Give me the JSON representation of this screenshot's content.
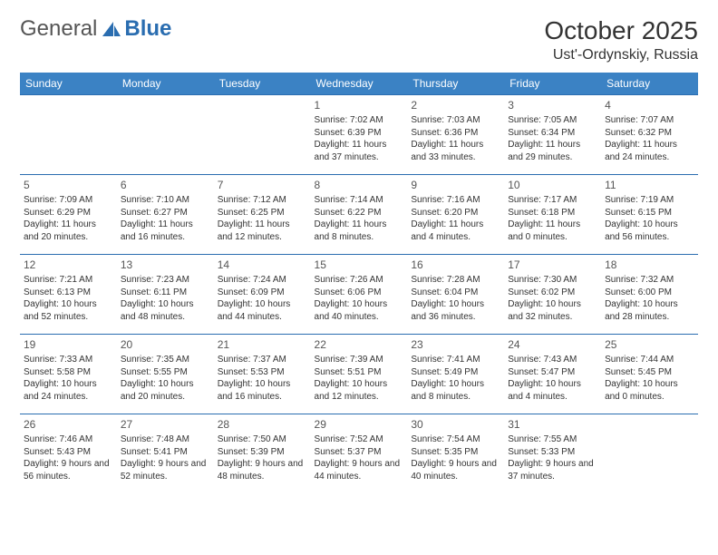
{
  "brand": {
    "part1": "General",
    "part2": "Blue"
  },
  "title": "October 2025",
  "location": "Ust'-Ordynskiy, Russia",
  "colors": {
    "header_bg": "#3b82c4",
    "header_text": "#ffffff",
    "border": "#2a6db0",
    "text": "#333333",
    "brand_blue": "#2a6db0"
  },
  "weekdays": [
    "Sunday",
    "Monday",
    "Tuesday",
    "Wednesday",
    "Thursday",
    "Friday",
    "Saturday"
  ],
  "weeks": [
    [
      null,
      null,
      null,
      {
        "n": "1",
        "sr": "Sunrise: 7:02 AM",
        "ss": "Sunset: 6:39 PM",
        "dl": "Daylight: 11 hours and 37 minutes."
      },
      {
        "n": "2",
        "sr": "Sunrise: 7:03 AM",
        "ss": "Sunset: 6:36 PM",
        "dl": "Daylight: 11 hours and 33 minutes."
      },
      {
        "n": "3",
        "sr": "Sunrise: 7:05 AM",
        "ss": "Sunset: 6:34 PM",
        "dl": "Daylight: 11 hours and 29 minutes."
      },
      {
        "n": "4",
        "sr": "Sunrise: 7:07 AM",
        "ss": "Sunset: 6:32 PM",
        "dl": "Daylight: 11 hours and 24 minutes."
      }
    ],
    [
      {
        "n": "5",
        "sr": "Sunrise: 7:09 AM",
        "ss": "Sunset: 6:29 PM",
        "dl": "Daylight: 11 hours and 20 minutes."
      },
      {
        "n": "6",
        "sr": "Sunrise: 7:10 AM",
        "ss": "Sunset: 6:27 PM",
        "dl": "Daylight: 11 hours and 16 minutes."
      },
      {
        "n": "7",
        "sr": "Sunrise: 7:12 AM",
        "ss": "Sunset: 6:25 PM",
        "dl": "Daylight: 11 hours and 12 minutes."
      },
      {
        "n": "8",
        "sr": "Sunrise: 7:14 AM",
        "ss": "Sunset: 6:22 PM",
        "dl": "Daylight: 11 hours and 8 minutes."
      },
      {
        "n": "9",
        "sr": "Sunrise: 7:16 AM",
        "ss": "Sunset: 6:20 PM",
        "dl": "Daylight: 11 hours and 4 minutes."
      },
      {
        "n": "10",
        "sr": "Sunrise: 7:17 AM",
        "ss": "Sunset: 6:18 PM",
        "dl": "Daylight: 11 hours and 0 minutes."
      },
      {
        "n": "11",
        "sr": "Sunrise: 7:19 AM",
        "ss": "Sunset: 6:15 PM",
        "dl": "Daylight: 10 hours and 56 minutes."
      }
    ],
    [
      {
        "n": "12",
        "sr": "Sunrise: 7:21 AM",
        "ss": "Sunset: 6:13 PM",
        "dl": "Daylight: 10 hours and 52 minutes."
      },
      {
        "n": "13",
        "sr": "Sunrise: 7:23 AM",
        "ss": "Sunset: 6:11 PM",
        "dl": "Daylight: 10 hours and 48 minutes."
      },
      {
        "n": "14",
        "sr": "Sunrise: 7:24 AM",
        "ss": "Sunset: 6:09 PM",
        "dl": "Daylight: 10 hours and 44 minutes."
      },
      {
        "n": "15",
        "sr": "Sunrise: 7:26 AM",
        "ss": "Sunset: 6:06 PM",
        "dl": "Daylight: 10 hours and 40 minutes."
      },
      {
        "n": "16",
        "sr": "Sunrise: 7:28 AM",
        "ss": "Sunset: 6:04 PM",
        "dl": "Daylight: 10 hours and 36 minutes."
      },
      {
        "n": "17",
        "sr": "Sunrise: 7:30 AM",
        "ss": "Sunset: 6:02 PM",
        "dl": "Daylight: 10 hours and 32 minutes."
      },
      {
        "n": "18",
        "sr": "Sunrise: 7:32 AM",
        "ss": "Sunset: 6:00 PM",
        "dl": "Daylight: 10 hours and 28 minutes."
      }
    ],
    [
      {
        "n": "19",
        "sr": "Sunrise: 7:33 AM",
        "ss": "Sunset: 5:58 PM",
        "dl": "Daylight: 10 hours and 24 minutes."
      },
      {
        "n": "20",
        "sr": "Sunrise: 7:35 AM",
        "ss": "Sunset: 5:55 PM",
        "dl": "Daylight: 10 hours and 20 minutes."
      },
      {
        "n": "21",
        "sr": "Sunrise: 7:37 AM",
        "ss": "Sunset: 5:53 PM",
        "dl": "Daylight: 10 hours and 16 minutes."
      },
      {
        "n": "22",
        "sr": "Sunrise: 7:39 AM",
        "ss": "Sunset: 5:51 PM",
        "dl": "Daylight: 10 hours and 12 minutes."
      },
      {
        "n": "23",
        "sr": "Sunrise: 7:41 AM",
        "ss": "Sunset: 5:49 PM",
        "dl": "Daylight: 10 hours and 8 minutes."
      },
      {
        "n": "24",
        "sr": "Sunrise: 7:43 AM",
        "ss": "Sunset: 5:47 PM",
        "dl": "Daylight: 10 hours and 4 minutes."
      },
      {
        "n": "25",
        "sr": "Sunrise: 7:44 AM",
        "ss": "Sunset: 5:45 PM",
        "dl": "Daylight: 10 hours and 0 minutes."
      }
    ],
    [
      {
        "n": "26",
        "sr": "Sunrise: 7:46 AM",
        "ss": "Sunset: 5:43 PM",
        "dl": "Daylight: 9 hours and 56 minutes."
      },
      {
        "n": "27",
        "sr": "Sunrise: 7:48 AM",
        "ss": "Sunset: 5:41 PM",
        "dl": "Daylight: 9 hours and 52 minutes."
      },
      {
        "n": "28",
        "sr": "Sunrise: 7:50 AM",
        "ss": "Sunset: 5:39 PM",
        "dl": "Daylight: 9 hours and 48 minutes."
      },
      {
        "n": "29",
        "sr": "Sunrise: 7:52 AM",
        "ss": "Sunset: 5:37 PM",
        "dl": "Daylight: 9 hours and 44 minutes."
      },
      {
        "n": "30",
        "sr": "Sunrise: 7:54 AM",
        "ss": "Sunset: 5:35 PM",
        "dl": "Daylight: 9 hours and 40 minutes."
      },
      {
        "n": "31",
        "sr": "Sunrise: 7:55 AM",
        "ss": "Sunset: 5:33 PM",
        "dl": "Daylight: 9 hours and 37 minutes."
      },
      null
    ]
  ]
}
